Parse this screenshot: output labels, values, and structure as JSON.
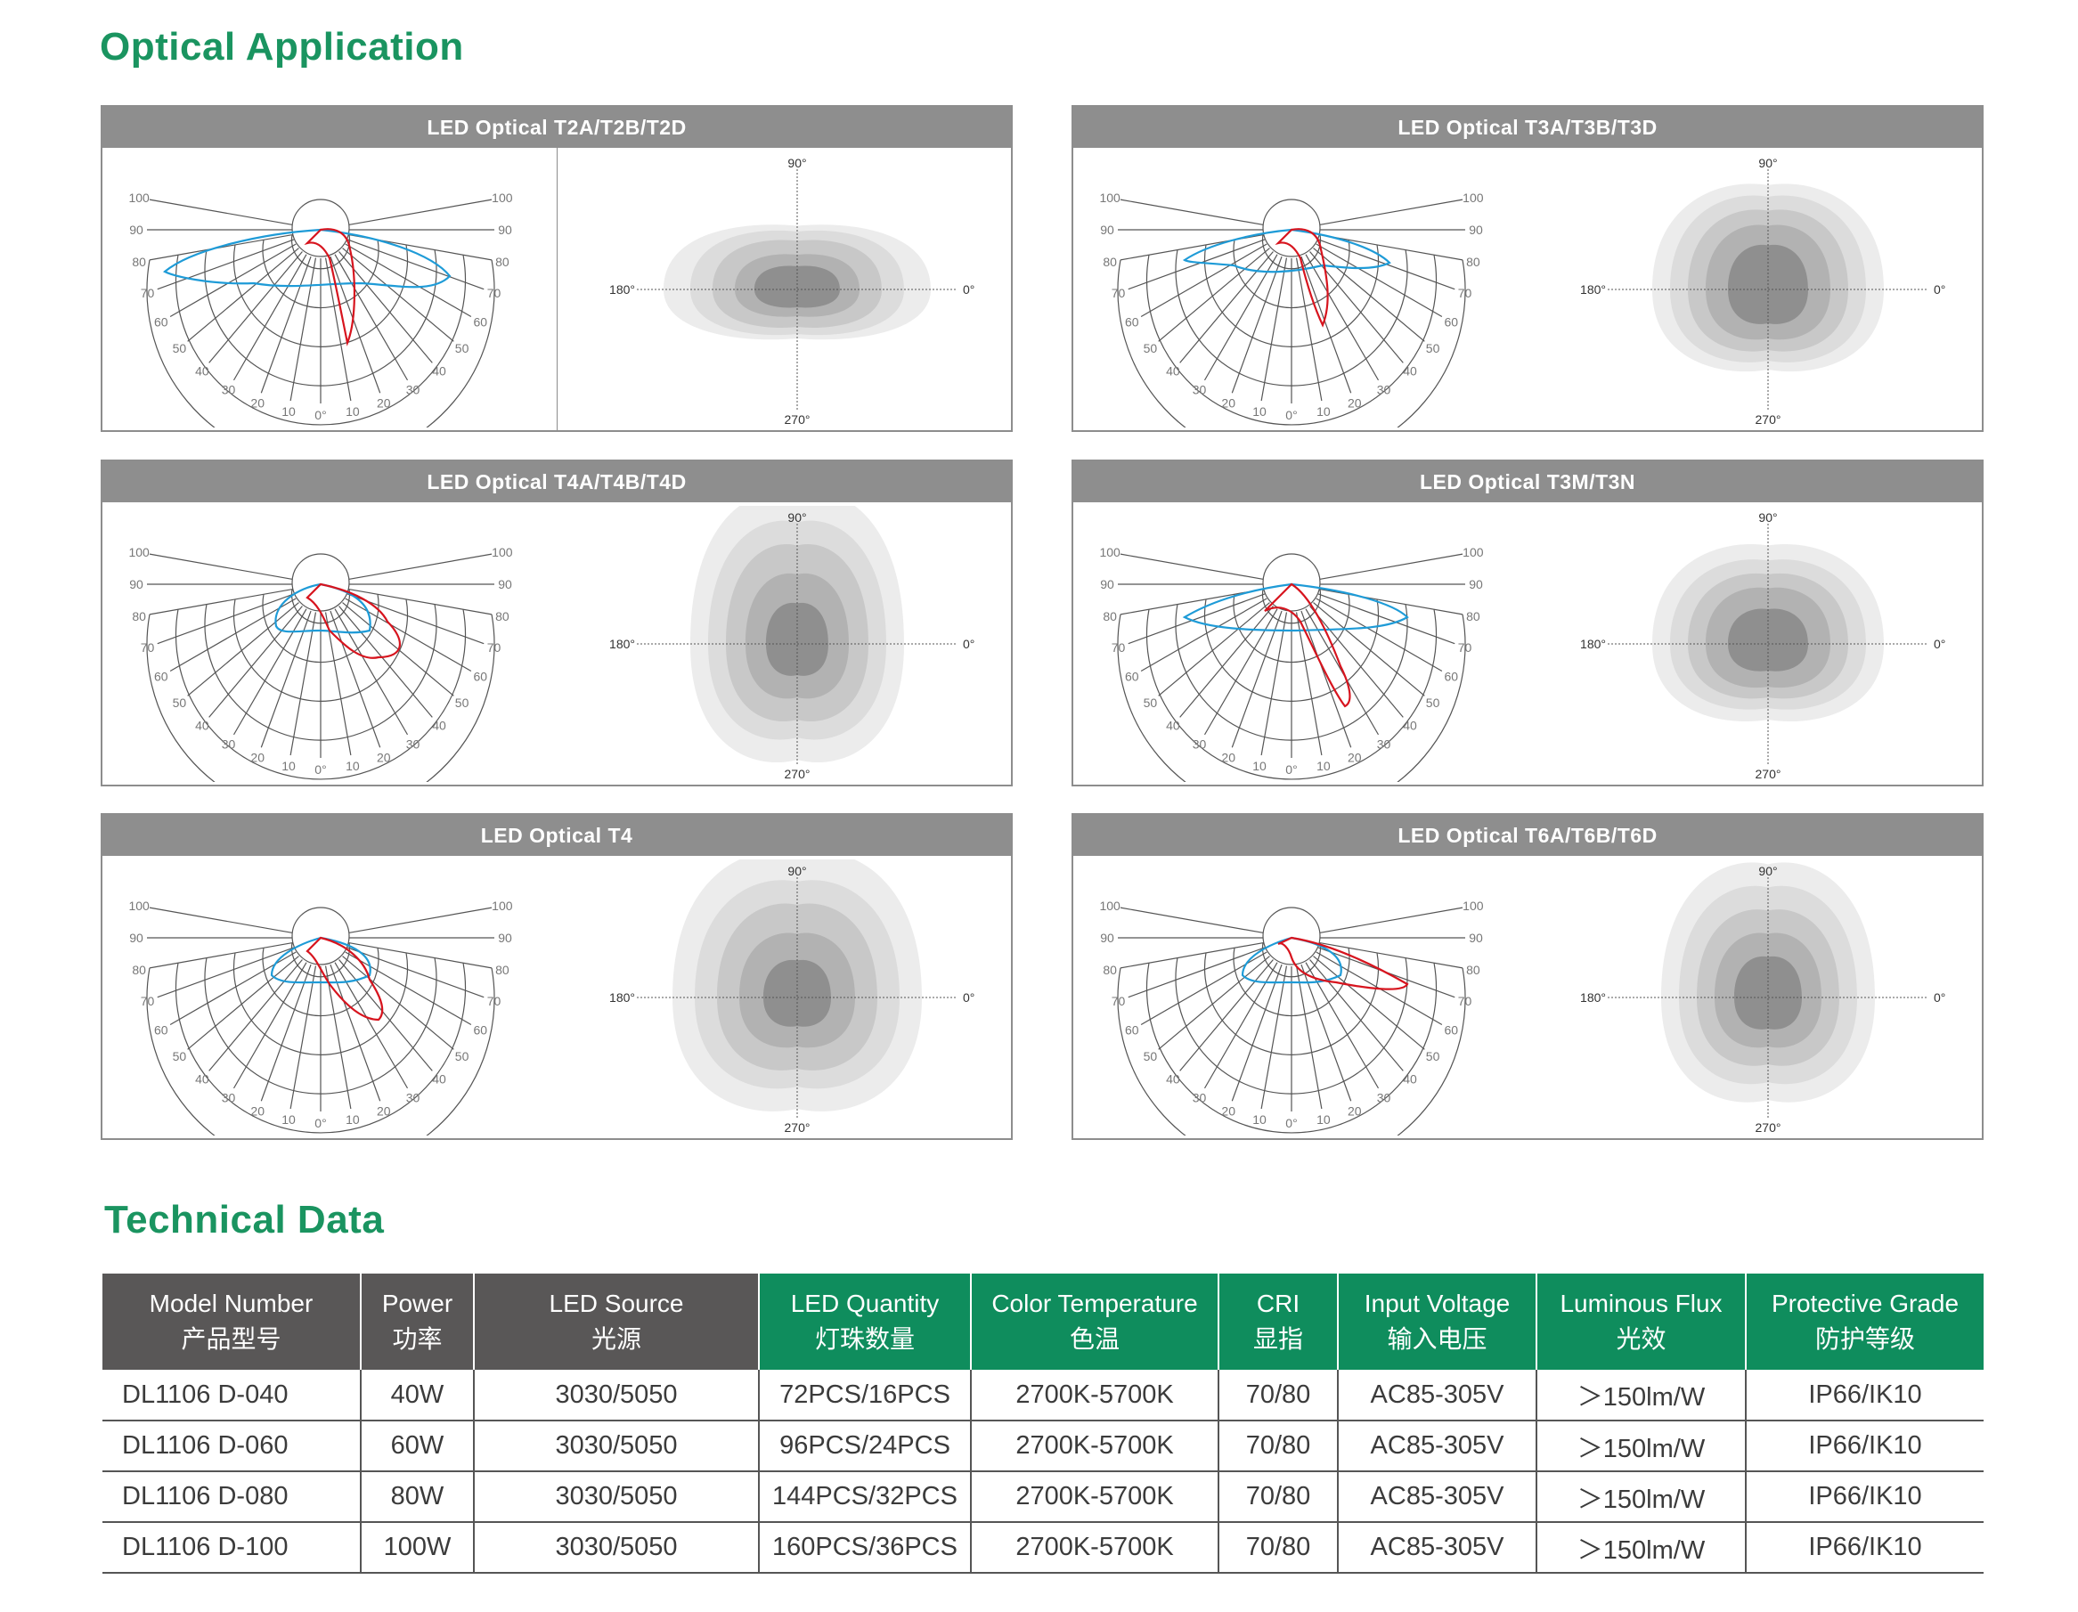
{
  "sections": {
    "optical_title": "Optical Application",
    "technical_title": "Technical Data"
  },
  "panels": [
    {
      "title": "LED Optical T2A/T2B/T2D"
    },
    {
      "title": "LED Optical T3A/T3B/T3D"
    },
    {
      "title": "LED Optical T4A/T4B/T4D"
    },
    {
      "title": "LED Optical T3M/T3N"
    },
    {
      "title": "LED Optical T4"
    },
    {
      "title": "LED Optical T6A/T6B/T6D"
    }
  ],
  "polar_labels": {
    "radial": [
      "100",
      "90",
      "80",
      "70",
      "60",
      "50",
      "40",
      "30",
      "20",
      "10"
    ],
    "zero": "0°"
  },
  "iso_labels": {
    "top": "90°",
    "bottom": "270°",
    "left": "180°",
    "right": "0°"
  },
  "colors": {
    "accent_green": "#1a9460",
    "curve_red": "#d7141e",
    "curve_blue": "#1e9bd7",
    "header_gray": "#8e8e8e",
    "table_dark": "#595757",
    "table_green": "#0f8d5d"
  },
  "table": {
    "headers": [
      {
        "en": "Model Number",
        "cn": "产品型号"
      },
      {
        "en": "Power",
        "cn": "功率"
      },
      {
        "en": "LED Source",
        "cn": "光源"
      },
      {
        "en": "LED Quantity",
        "cn": "灯珠数量"
      },
      {
        "en": "Color Temperature",
        "cn": "色温"
      },
      {
        "en": "CRI",
        "cn": "显指"
      },
      {
        "en": "Input Voltage",
        "cn": "输入电压"
      },
      {
        "en": "Luminous Flux",
        "cn": "光效"
      },
      {
        "en": "Protective Grade",
        "cn": "防护等级"
      }
    ],
    "rows": [
      [
        "DL1106 D-040",
        "40W",
        "3030/5050",
        "72PCS/16PCS",
        "2700K-5700K",
        "70/80",
        "AC85-305V",
        "＞150lm/W",
        "IP66/IK10"
      ],
      [
        "DL1106 D-060",
        "60W",
        "3030/5050",
        "96PCS/24PCS",
        "2700K-5700K",
        "70/80",
        "AC85-305V",
        "＞150lm/W",
        "IP66/IK10"
      ],
      [
        "DL1106 D-080",
        "80W",
        "3030/5050",
        "144PCS/32PCS",
        "2700K-5700K",
        "70/80",
        "AC85-305V",
        "＞150lm/W",
        "IP66/IK10"
      ],
      [
        "DL1106 D-100",
        "100W",
        "3030/5050",
        "160PCS/36PCS",
        "2700K-5700K",
        "70/80",
        "AC85-305V",
        "＞150lm/W",
        "IP66/IK10"
      ]
    ]
  }
}
